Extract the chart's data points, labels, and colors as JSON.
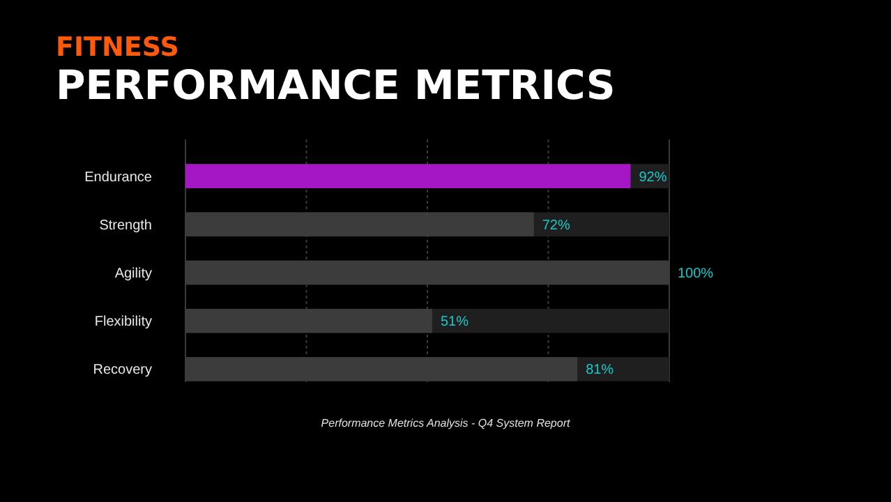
{
  "chart_data": {
    "type": "bar",
    "orientation": "horizontal",
    "subtitle": "FITNESS",
    "title": "PERFORMANCE METRICS",
    "categories": [
      "Endurance",
      "Strength",
      "Agility",
      "Flexibility",
      "Recovery"
    ],
    "values": [
      92,
      72,
      100,
      51,
      81
    ],
    "colors": [
      "#a517c4",
      "#3c3c3c",
      "#3c3c3c",
      "#3c3c3c",
      "#3c3c3c"
    ],
    "value_labels": [
      "92%",
      "72%",
      "100%",
      "51%",
      "81%"
    ],
    "xlim": [
      0,
      100
    ],
    "xticks": [
      {
        "value": 0,
        "label": null
      },
      {
        "value": 25,
        "label": null
      },
      {
        "value": 50,
        "label": null
      },
      {
        "value": 75,
        "label": null
      },
      {
        "value": 100,
        "label": null
      }
    ],
    "tick_labels": "y",
    "grid": "x",
    "annotations": [
      "Performance Metrics Analysis - Q4 System Report"
    ]
  }
}
